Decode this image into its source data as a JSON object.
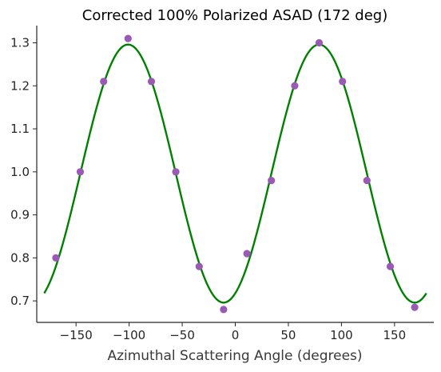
{
  "chart_data": {
    "type": "scatter",
    "title": "Corrected 100% Polarized ASAD (172 deg)",
    "xlabel": "Azimuthal Scattering Angle (degrees)",
    "ylabel": "",
    "xlim": [
      -187,
      187
    ],
    "ylim": [
      0.65,
      1.34
    ],
    "xticks": [
      -150,
      -100,
      -50,
      0,
      50,
      100,
      150
    ],
    "xtick_labels": [
      "−150",
      "−100",
      "−50",
      "0",
      "50",
      "100",
      "150"
    ],
    "yticks": [
      0.7,
      0.8,
      0.9,
      1.0,
      1.1,
      1.2,
      1.3
    ],
    "ytick_labels": [
      "0.7",
      "0.8",
      "0.9",
      "1.0",
      "1.1",
      "1.2",
      "1.3"
    ],
    "grid": false,
    "series": [
      {
        "kind": "scatter",
        "color": "#9b59b6",
        "x": [
          -169,
          -146,
          -124,
          -101,
          -79,
          -56,
          -34,
          -11,
          11,
          34,
          56,
          79,
          101,
          124,
          146,
          169
        ],
        "y": [
          0.8,
          1.0,
          1.21,
          1.31,
          1.21,
          1.0,
          0.78,
          0.68,
          0.81,
          0.98,
          1.2,
          1.3,
          1.21,
          0.98,
          0.78,
          0.685
        ]
      },
      {
        "kind": "line",
        "color": "#008000",
        "function": "A + B*cos(2*(phi - phi0))",
        "params": {
          "A": 0.996,
          "B": 0.3,
          "phi0": 79
        },
        "x_range": [
          -180,
          180
        ]
      }
    ]
  }
}
